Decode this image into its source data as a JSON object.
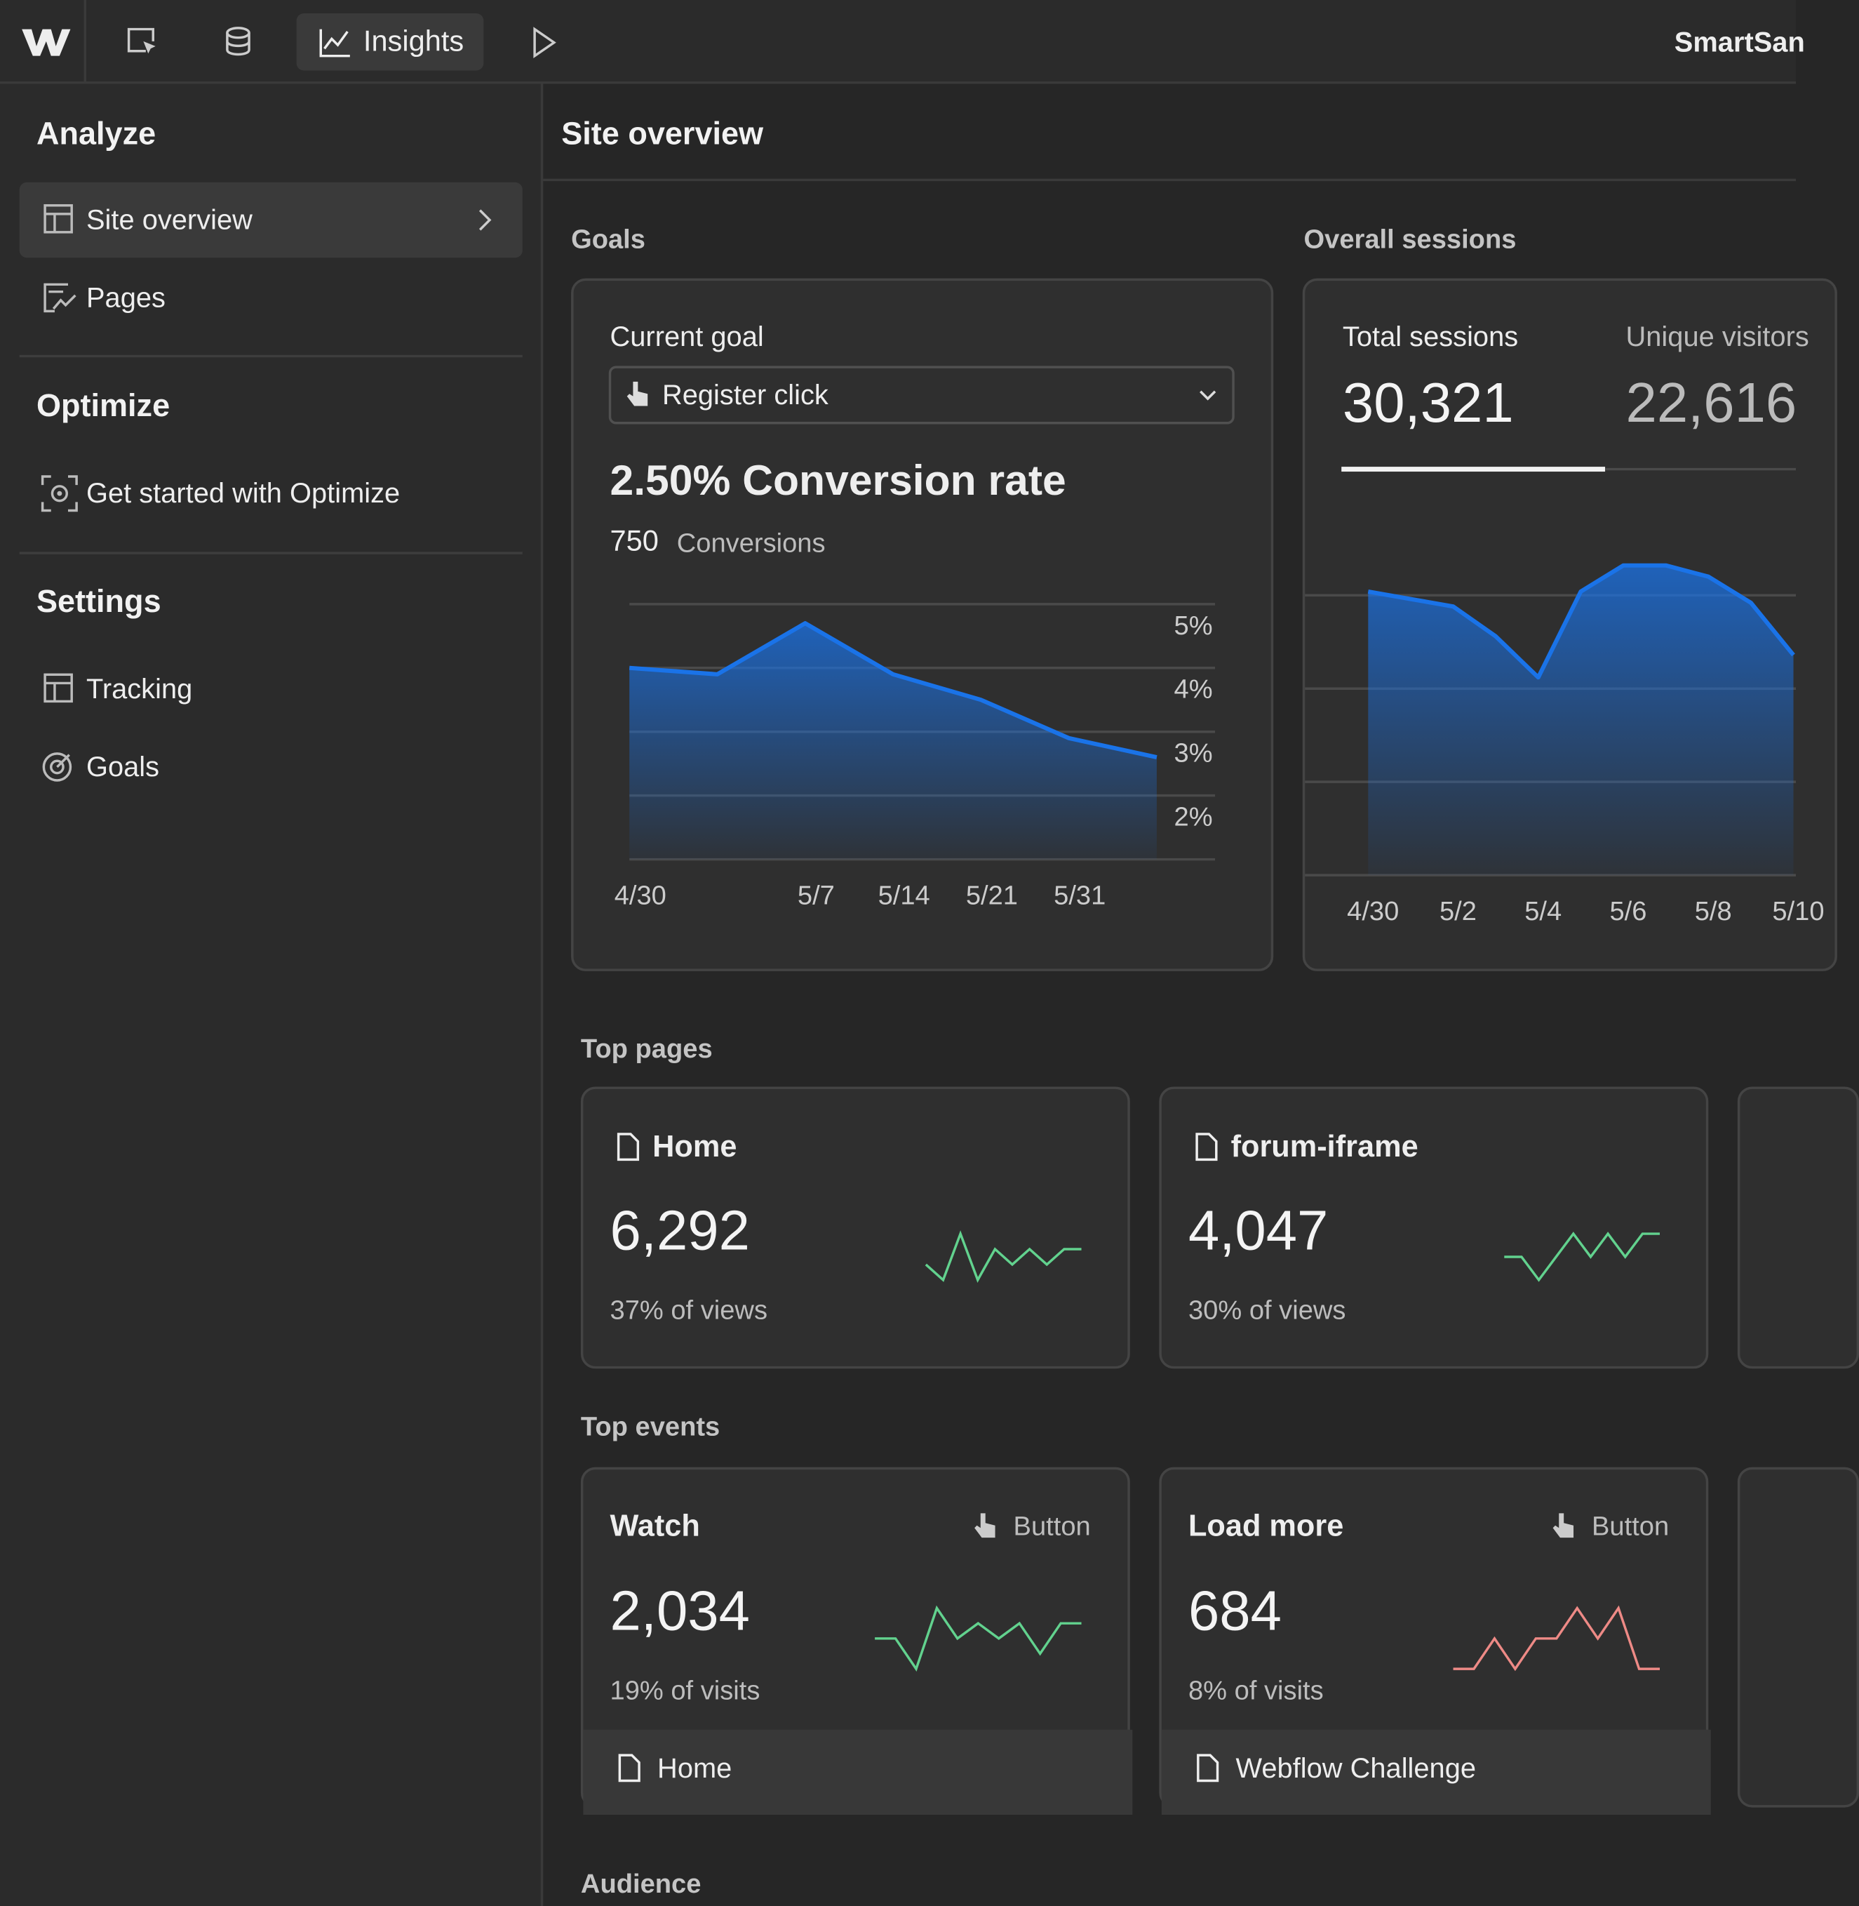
{
  "topbar": {
    "tab": "Insights",
    "site": "SmartSan"
  },
  "sidebar": {
    "sections": [
      {
        "title": "Analyze",
        "items": [
          "Site overview",
          "Pages"
        ]
      },
      {
        "title": "Optimize",
        "items": [
          "Get started with Optimize"
        ]
      },
      {
        "title": "Settings",
        "items": [
          "Tracking",
          "Goals"
        ]
      }
    ]
  },
  "main": {
    "title": "Site overview",
    "goals": {
      "heading": "Goals",
      "label": "Current goal",
      "selected": "Register click",
      "rate": "2.50% Conversion rate",
      "conversions": 750,
      "conversions_label": "Conversions",
      "chart": {
        "type": "area",
        "color": "#1a73e8",
        "categories": [
          "4/30",
          null,
          "5/7",
          "5/14",
          "5/21",
          "5/31",
          null
        ],
        "values": [
          4.0,
          3.9,
          4.7,
          3.9,
          3.5,
          2.9,
          2.6
        ],
        "ylim": [
          1,
          5
        ],
        "yticks": [
          {
            "value": 5,
            "label": "5%"
          },
          {
            "value": 4,
            "label": "4%"
          },
          {
            "value": 3,
            "label": "3%"
          },
          {
            "value": 2,
            "label": "2%"
          }
        ],
        "grid": true
      }
    },
    "sessions": {
      "heading": "Overall sessions",
      "tabs": [
        {
          "label": "Total sessions",
          "value": "30,321"
        },
        {
          "label": "Unique visitors",
          "value": "22,616"
        }
      ],
      "chart": {
        "type": "area",
        "color": "#1a73e8",
        "categories": [
          "4/30",
          null,
          "5/2",
          null,
          "5/4",
          null,
          "5/6",
          null,
          "5/8",
          null,
          "5/10"
        ],
        "values": [
          76,
          74,
          72,
          64,
          53,
          76,
          83,
          83,
          80,
          73,
          59
        ],
        "ylim": [
          0,
          100
        ],
        "grid": true
      }
    },
    "top_pages": {
      "heading": "Top pages",
      "cards": [
        {
          "name": "Home",
          "value": "6,292",
          "share": "37% of views",
          "color": "#62d28e",
          "trend": [
            3,
            2,
            5,
            2,
            4,
            3,
            4,
            3,
            4,
            4
          ]
        },
        {
          "name": "forum-iframe",
          "value": "4,047",
          "share": "30% of views",
          "color": "#62d28e",
          "trend": [
            3,
            3,
            2,
            3,
            4,
            3,
            4,
            3,
            4,
            4
          ]
        }
      ]
    },
    "top_events": {
      "heading": "Top events",
      "cards": [
        {
          "name": "Watch",
          "kind": "Button",
          "value": "2,034",
          "share": "19% of visits",
          "page": "Home",
          "color": "#62d28e",
          "trend": [
            3,
            3,
            1,
            5,
            3,
            4,
            3,
            4,
            2,
            4,
            4
          ]
        },
        {
          "name": "Load more",
          "kind": "Button",
          "value": "684",
          "share": "8% of visits",
          "page": "Webflow Challenge",
          "color": "#ee8a86",
          "trend": [
            2,
            2,
            3,
            2,
            3,
            3,
            4,
            3,
            4,
            2,
            2
          ]
        }
      ]
    },
    "audience": {
      "heading": "Audience"
    }
  }
}
